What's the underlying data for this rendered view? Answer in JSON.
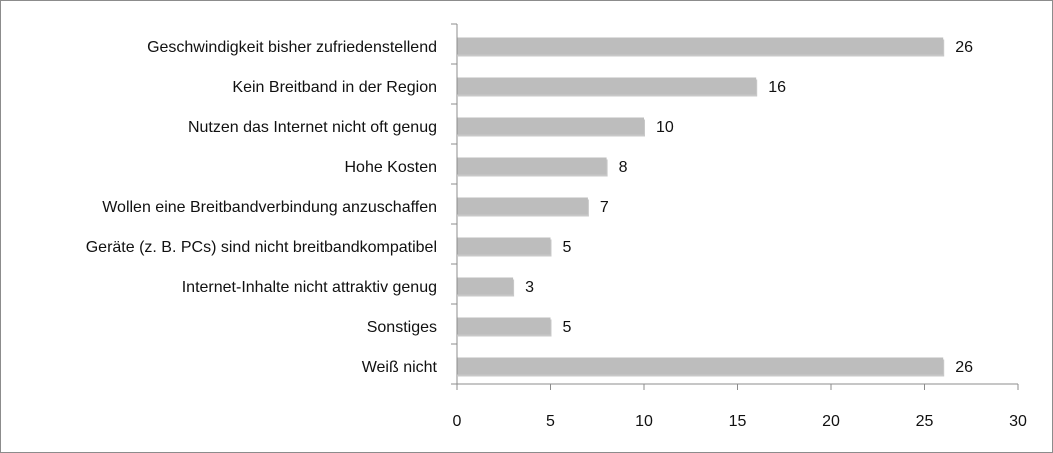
{
  "chart_data": {
    "type": "bar",
    "orientation": "horizontal",
    "categories": [
      "Geschwindigkeit bisher zufriedenstellend",
      "Kein Breitband in der Region",
      "Nutzen das Internet nicht oft genug",
      "Hohe Kosten",
      "Wollen eine Breitbandverbindung anzuschaffen",
      "Geräte (z. B. PCs) sind nicht breitbandkompatibel",
      "Internet-Inhalte nicht attraktiv genug",
      "Sonstiges",
      "Weiß nicht"
    ],
    "values": [
      26,
      16,
      10,
      8,
      7,
      5,
      3,
      5,
      26
    ],
    "data_labels": [
      "26",
      "16",
      "10",
      "8",
      "7",
      "5",
      "3",
      "5",
      "26"
    ],
    "xlim": [
      0,
      30
    ],
    "xticks": [
      0,
      5,
      10,
      15,
      20,
      25,
      30
    ],
    "xtick_labels": [
      "0",
      "5",
      "10",
      "15",
      "20",
      "25",
      "30"
    ],
    "grid": false,
    "legend": "none",
    "bar_color": "#bdbdbd",
    "bar_shadow_color": "#9a9a9a",
    "axis_color": "#8c8c8c",
    "text_color": "#111111"
  }
}
